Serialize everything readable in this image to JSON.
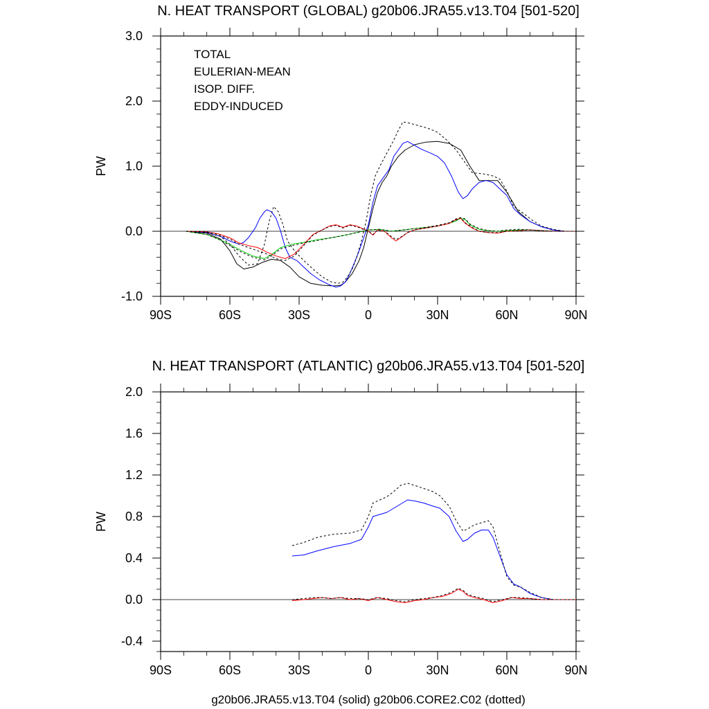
{
  "footer": "g20b06.JRA55.v13.T04 (solid) g20b06.CORE2.C02 (dotted)",
  "colors": {
    "total": "#000000",
    "eulerian": "#0000ff",
    "isop": "#00cc00",
    "eddy": "#ff0000"
  },
  "chart_data": [
    {
      "type": "line",
      "title": "N. HEAT TRANSPORT (GLOBAL) g20b06.JRA55.v13.T04 [501-520]",
      "ylabel": "PW",
      "xlabel": "",
      "xlim": [
        -90,
        90
      ],
      "ylim": [
        -1.0,
        3.0
      ],
      "xticks": [
        -90,
        -60,
        -30,
        0,
        30,
        60,
        90
      ],
      "xtick_labels": [
        "90S",
        "60S",
        "30S",
        "0",
        "30N",
        "60N",
        "90N"
      ],
      "yticks": [
        -1.0,
        0.0,
        1.0,
        2.0,
        3.0
      ],
      "ytick_labels": [
        "-1.0",
        "0.0",
        "1.0",
        "2.0",
        "3.0"
      ],
      "legend": [
        "TOTAL",
        "EULERIAN-MEAN",
        "ISOP. DIFF.",
        "EDDY-INDUCED"
      ],
      "legend_position": "top-left",
      "zero_line": true,
      "series": [
        {
          "name": "TOTAL",
          "color_key": "total",
          "style": "solid",
          "x": [
            -79,
            -70,
            -64,
            -60,
            -57,
            -54,
            -50,
            -46,
            -42,
            -38,
            -34,
            -30,
            -25,
            -20,
            -15,
            -12,
            -10,
            -7,
            -4,
            -2,
            0,
            2,
            4,
            6,
            8,
            10,
            13,
            16,
            20,
            25,
            30,
            35,
            40,
            44,
            48,
            52,
            56,
            60,
            65,
            70,
            75,
            80,
            85,
            90
          ],
          "y": [
            0,
            -0.03,
            -0.12,
            -0.3,
            -0.5,
            -0.58,
            -0.55,
            -0.48,
            -0.43,
            -0.45,
            -0.55,
            -0.7,
            -0.8,
            -0.83,
            -0.84,
            -0.83,
            -0.78,
            -0.65,
            -0.45,
            -0.25,
            0.05,
            0.35,
            0.6,
            0.75,
            0.85,
            1.0,
            1.15,
            1.25,
            1.33,
            1.37,
            1.38,
            1.35,
            1.25,
            1.0,
            0.78,
            0.78,
            0.78,
            0.6,
            0.3,
            0.15,
            0.07,
            0.02,
            0.0,
            0.0
          ]
        },
        {
          "name": "EULERIAN-MEAN",
          "color_key": "eulerian",
          "style": "solid",
          "x": [
            -79,
            -70,
            -64,
            -60,
            -56,
            -54,
            -52,
            -49,
            -47,
            -45,
            -44,
            -42,
            -40,
            -38,
            -36,
            -34,
            -31,
            -28,
            -25,
            -21,
            -17,
            -14,
            -12,
            -10,
            -8,
            -6,
            -4,
            -2,
            0,
            2,
            4,
            6,
            9,
            11,
            13,
            15,
            17,
            20,
            23,
            27,
            30,
            33,
            36,
            39,
            41,
            43,
            45,
            48,
            51,
            54,
            57,
            60,
            63,
            66,
            70,
            75,
            80,
            85,
            90
          ],
          "y": [
            0,
            -0.02,
            -0.08,
            -0.15,
            -0.2,
            -0.17,
            -0.1,
            0.05,
            0.2,
            0.3,
            0.33,
            0.3,
            0.2,
            0.0,
            -0.25,
            -0.4,
            -0.45,
            -0.55,
            -0.65,
            -0.75,
            -0.82,
            -0.86,
            -0.84,
            -0.78,
            -0.65,
            -0.48,
            -0.3,
            -0.1,
            0.1,
            0.45,
            0.7,
            0.8,
            0.95,
            1.15,
            1.25,
            1.35,
            1.38,
            1.32,
            1.26,
            1.2,
            1.15,
            1.05,
            0.85,
            0.6,
            0.5,
            0.55,
            0.65,
            0.75,
            0.78,
            0.75,
            0.65,
            0.55,
            0.35,
            0.25,
            0.15,
            0.07,
            0.02,
            0.0,
            0.0
          ]
        },
        {
          "name": "ISOP. DIFF.",
          "color_key": "isop",
          "style": "solid",
          "x": [
            -79,
            -70,
            -65,
            -60,
            -55,
            -50,
            -45,
            -42,
            -38,
            -33,
            -28,
            -22,
            -16,
            -10,
            -5,
            0,
            5,
            10,
            15,
            20,
            25,
            30,
            35,
            38,
            40,
            42,
            44,
            48,
            52,
            56,
            60,
            65,
            70,
            75,
            80,
            85,
            90
          ],
          "y": [
            0,
            -0.05,
            -0.12,
            -0.2,
            -0.3,
            -0.38,
            -0.42,
            -0.36,
            -0.25,
            -0.2,
            -0.17,
            -0.13,
            -0.1,
            -0.06,
            -0.02,
            0.02,
            0.03,
            0.0,
            0.02,
            0.04,
            0.06,
            0.08,
            0.12,
            0.16,
            0.2,
            0.18,
            0.1,
            0.03,
            0.01,
            0.0,
            0.01,
            0.02,
            0.02,
            0.01,
            0.0,
            0.0,
            0.0
          ]
        },
        {
          "name": "EDDY-INDUCED",
          "color_key": "eddy",
          "style": "solid",
          "x": [
            -79,
            -70,
            -65,
            -60,
            -56,
            -52,
            -48,
            -44,
            -40,
            -36,
            -32,
            -28,
            -24,
            -20,
            -17,
            -14,
            -11,
            -8,
            -5,
            -3,
            0,
            2,
            4,
            7,
            10,
            12,
            14,
            17,
            20,
            25,
            30,
            35,
            38,
            40,
            42,
            45,
            48,
            52,
            56,
            60,
            65,
            70,
            75,
            80,
            85,
            90
          ],
          "y": [
            0,
            -0.01,
            -0.04,
            -0.1,
            -0.18,
            -0.22,
            -0.25,
            -0.32,
            -0.38,
            -0.42,
            -0.35,
            -0.2,
            -0.05,
            0.02,
            0.08,
            0.1,
            0.06,
            0.1,
            0.08,
            0.05,
            0.0,
            -0.06,
            0.02,
            0.0,
            -0.1,
            -0.15,
            -0.1,
            -0.02,
            0.02,
            0.05,
            0.08,
            0.12,
            0.18,
            0.2,
            0.12,
            0.05,
            0.0,
            -0.02,
            -0.03,
            0.0,
            0.01,
            0.02,
            0.01,
            0.0,
            0.0,
            0.0
          ]
        },
        {
          "name": "TOTAL (dotted)",
          "color_key": "total",
          "style": "dotted",
          "x": [
            -79,
            -70,
            -64,
            -60,
            -56,
            -52,
            -48,
            -45,
            -43,
            -41,
            -39,
            -37,
            -35,
            -32,
            -28,
            -24,
            -20,
            -16,
            -13,
            -11,
            -9,
            -7,
            -5,
            -3,
            -1,
            1,
            3,
            5,
            8,
            11,
            13,
            15,
            18,
            22,
            26,
            30,
            34,
            38,
            42,
            45,
            50,
            54,
            57,
            60,
            63,
            67,
            71,
            75,
            80,
            85,
            90
          ],
          "y": [
            0,
            -0.02,
            -0.08,
            -0.2,
            -0.38,
            -0.52,
            -0.5,
            -0.2,
            0.15,
            0.38,
            0.3,
            0.1,
            -0.15,
            -0.3,
            -0.45,
            -0.58,
            -0.7,
            -0.78,
            -0.8,
            -0.78,
            -0.7,
            -0.58,
            -0.4,
            -0.15,
            0.15,
            0.55,
            0.85,
            1.0,
            1.2,
            1.4,
            1.55,
            1.68,
            1.66,
            1.62,
            1.58,
            1.52,
            1.4,
            1.25,
            1.05,
            0.9,
            0.88,
            0.85,
            0.8,
            0.62,
            0.38,
            0.28,
            0.17,
            0.08,
            0.03,
            0.0,
            0.0
          ]
        },
        {
          "name": "ISOP. DIFF. (dotted)",
          "color_key": "total",
          "style": "dotted",
          "x": [
            -79,
            -70,
            -65,
            -60,
            -55,
            -50,
            -45,
            -42,
            -38,
            -33,
            -28,
            -22,
            -16,
            -10,
            -5,
            0,
            5,
            10,
            15,
            20,
            25,
            30,
            35,
            38,
            40,
            42,
            44,
            48,
            52,
            56,
            60,
            65,
            70,
            75,
            80,
            85,
            90
          ],
          "y": [
            0,
            -0.05,
            -0.12,
            -0.22,
            -0.32,
            -0.4,
            -0.44,
            -0.38,
            -0.27,
            -0.22,
            -0.18,
            -0.14,
            -0.1,
            -0.06,
            -0.02,
            0.02,
            0.03,
            0.0,
            0.02,
            0.04,
            0.06,
            0.09,
            0.13,
            0.17,
            0.21,
            0.19,
            0.11,
            0.04,
            0.01,
            0.0,
            0.02,
            0.03,
            0.02,
            0.01,
            0.0,
            0.0,
            0.0
          ]
        },
        {
          "name": "EDDY-INDUCED (dotted)",
          "color_key": "total",
          "style": "dotted",
          "x": [
            -79,
            -70,
            -65,
            -60,
            -56,
            -52,
            -48,
            -44,
            -40,
            -36,
            -32,
            -28,
            -24,
            -20,
            -17,
            -14,
            -11,
            -8,
            -5,
            -3,
            0,
            2,
            4,
            7,
            10,
            12,
            14,
            17,
            20,
            25,
            30,
            35,
            38,
            40,
            42,
            45,
            48,
            52,
            56,
            60,
            65,
            70,
            75,
            80,
            85,
            90
          ],
          "y": [
            0,
            -0.01,
            -0.05,
            -0.12,
            -0.2,
            -0.25,
            -0.3,
            -0.35,
            -0.42,
            -0.45,
            -0.38,
            -0.22,
            -0.06,
            0.02,
            0.07,
            0.09,
            0.05,
            0.09,
            0.07,
            0.04,
            0.0,
            -0.05,
            0.02,
            0.0,
            -0.08,
            -0.13,
            -0.09,
            -0.02,
            0.02,
            0.05,
            0.08,
            0.13,
            0.19,
            0.21,
            0.13,
            0.06,
            0.0,
            -0.02,
            -0.02,
            0.0,
            0.01,
            0.02,
            0.01,
            0.0,
            0.0,
            0.0
          ]
        }
      ]
    },
    {
      "type": "line",
      "title": "N. HEAT TRANSPORT (ATLANTIC) g20b06.JRA55.v13.T04 [501-520]",
      "ylabel": "PW",
      "xlabel": "g20b06.JRA55.v13.T04 (solid) g20b06.CORE2.C02 (dotted)",
      "xlim": [
        -90,
        90
      ],
      "ylim": [
        -0.5,
        2.0
      ],
      "xticks": [
        -90,
        -60,
        -30,
        0,
        30,
        60,
        90
      ],
      "xtick_labels": [
        "90S",
        "60S",
        "30S",
        "0",
        "30N",
        "60N",
        "90N"
      ],
      "yticks": [
        -0.4,
        0.0,
        0.4,
        0.8,
        1.2,
        1.6,
        2.0
      ],
      "ytick_labels": [
        "-0.4",
        "0.0",
        "0.4",
        "0.8",
        "1.2",
        "1.6",
        "2.0"
      ],
      "zero_line": true,
      "series": [
        {
          "name": "EULERIAN-MEAN",
          "color_key": "eulerian",
          "style": "solid",
          "x": [
            -33,
            -28,
            -22,
            -15,
            -8,
            -3,
            0,
            2,
            5,
            8,
            11,
            14,
            17,
            20,
            24,
            28,
            31,
            35,
            38,
            41,
            43,
            46,
            49,
            52,
            54,
            57,
            60,
            63,
            66,
            70,
            75,
            80,
            85,
            90
          ],
          "y": [
            0.42,
            0.43,
            0.47,
            0.51,
            0.54,
            0.58,
            0.7,
            0.8,
            0.82,
            0.84,
            0.88,
            0.92,
            0.96,
            0.95,
            0.93,
            0.9,
            0.88,
            0.8,
            0.66,
            0.56,
            0.58,
            0.64,
            0.67,
            0.67,
            0.6,
            0.42,
            0.24,
            0.15,
            0.12,
            0.06,
            0.02,
            0.0,
            0.0,
            0.0
          ]
        },
        {
          "name": "EDDY-INDUCED",
          "color_key": "eddy",
          "style": "solid",
          "x": [
            -33,
            -28,
            -24,
            -20,
            -16,
            -12,
            -8,
            -4,
            0,
            4,
            8,
            12,
            16,
            20,
            24,
            28,
            32,
            36,
            39,
            41,
            43,
            46,
            50,
            54,
            58,
            62,
            66,
            70,
            75,
            80,
            85,
            90
          ],
          "y": [
            -0.01,
            0.0,
            0.01,
            0.02,
            0.01,
            0.02,
            0.0,
            0.01,
            -0.01,
            0.02,
            0.0,
            -0.02,
            -0.03,
            -0.01,
            0.0,
            0.02,
            0.03,
            0.06,
            0.1,
            0.08,
            0.04,
            0.02,
            0.0,
            -0.03,
            -0.01,
            0.02,
            0.01,
            0.01,
            0.0,
            0.0,
            0.0,
            0.0
          ]
        },
        {
          "name": "TOTAL (dotted)",
          "color_key": "total",
          "style": "dotted",
          "x": [
            -33,
            -28,
            -22,
            -15,
            -8,
            -3,
            0,
            2,
            5,
            8,
            11,
            14,
            17,
            20,
            24,
            28,
            31,
            35,
            38,
            41,
            43,
            46,
            49,
            52,
            54,
            57,
            60,
            63,
            66,
            70,
            75,
            80,
            85,
            90
          ],
          "y": [
            0.52,
            0.55,
            0.6,
            0.63,
            0.64,
            0.67,
            0.8,
            0.93,
            0.96,
            0.99,
            1.04,
            1.1,
            1.12,
            1.1,
            1.07,
            1.04,
            1.0,
            0.9,
            0.76,
            0.66,
            0.68,
            0.72,
            0.74,
            0.76,
            0.7,
            0.46,
            0.22,
            0.14,
            0.12,
            0.07,
            0.02,
            0.0,
            0.0,
            0.0
          ]
        },
        {
          "name": "EDDY-INDUCED (dotted)",
          "color_key": "total",
          "style": "dotted",
          "x": [
            -33,
            -28,
            -24,
            -20,
            -16,
            -12,
            -8,
            -4,
            0,
            4,
            8,
            12,
            16,
            20,
            24,
            28,
            32,
            36,
            39,
            41,
            43,
            46,
            50,
            54,
            58,
            62,
            66,
            70,
            75,
            80,
            85,
            90
          ],
          "y": [
            0.0,
            0.01,
            0.02,
            0.02,
            0.01,
            0.02,
            0.01,
            0.01,
            0.0,
            0.02,
            0.01,
            -0.01,
            -0.02,
            0.0,
            0.01,
            0.02,
            0.04,
            0.07,
            0.11,
            0.09,
            0.05,
            0.03,
            0.01,
            -0.02,
            0.0,
            0.02,
            0.02,
            0.01,
            0.0,
            0.0,
            0.0,
            0.0
          ]
        }
      ]
    }
  ]
}
